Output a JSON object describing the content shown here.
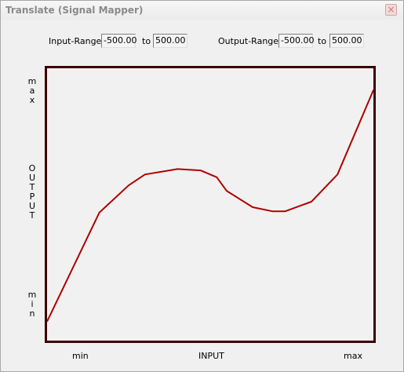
{
  "window": {
    "title": "Translate (Signal Mapper)",
    "close_icon": "close-icon"
  },
  "input_range": {
    "label": "Input-Range:",
    "min": "-500.00",
    "to": "to",
    "max": "500.00"
  },
  "output_range": {
    "label": "Output-Range:",
    "min": "-500.00",
    "to": "to",
    "max": "500.00"
  },
  "y_axis": {
    "max": "max",
    "title": "OUTPUT",
    "min": "min"
  },
  "x_axis": {
    "min": "min",
    "title": "INPUT",
    "max": "max"
  },
  "colors": {
    "curve": "#b00000",
    "plot_border": "#3c0000",
    "plot_bg": "#f1f1f1"
  },
  "curve": {
    "x_range": [
      0,
      1
    ],
    "y_range": [
      0,
      1
    ],
    "points": [
      [
        0.0,
        0.07
      ],
      [
        0.16,
        0.47
      ],
      [
        0.25,
        0.57
      ],
      [
        0.3,
        0.61
      ],
      [
        0.4,
        0.63
      ],
      [
        0.47,
        0.625
      ],
      [
        0.52,
        0.6
      ],
      [
        0.55,
        0.55
      ],
      [
        0.63,
        0.49
      ],
      [
        0.69,
        0.475
      ],
      [
        0.73,
        0.475
      ],
      [
        0.81,
        0.51
      ],
      [
        0.89,
        0.61
      ],
      [
        1.0,
        0.92
      ]
    ]
  }
}
